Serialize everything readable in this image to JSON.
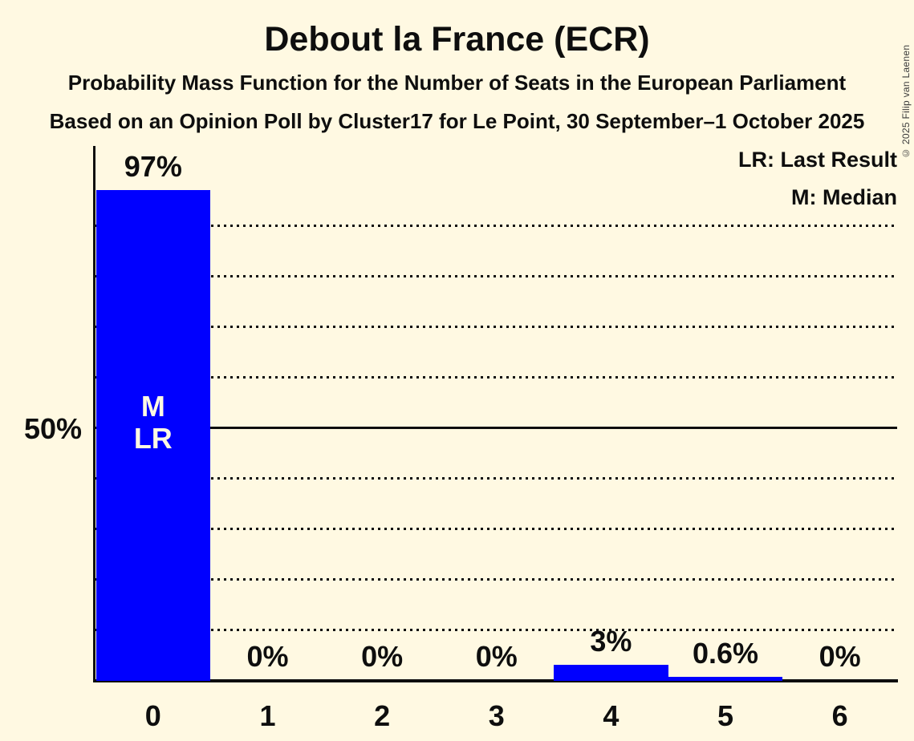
{
  "header": {
    "title": "Debout la France (ECR)",
    "subtitle1": "Probability Mass Function for the Number of Seats in the European Parliament",
    "subtitle2": "Based on an Opinion Poll by Cluster17 for Le Point, 30 September–1 October 2025",
    "copyright": "© 2025 Filip van Laenen"
  },
  "legend": {
    "lr": "LR: Last Result",
    "m": "M: Median"
  },
  "y_axis": {
    "label_50": "50%"
  },
  "colors": {
    "background": "#FFF9E2",
    "bar": "#0000FF",
    "text": "#0E0E0E",
    "bar_marker_text": "#FFF9E2",
    "copyright_text": "#3A3A3A"
  },
  "chart_data": {
    "type": "bar",
    "title": "Debout la France (ECR)",
    "xlabel": "Number of Seats",
    "ylabel": "Probability",
    "categories": [
      "0",
      "1",
      "2",
      "3",
      "4",
      "5",
      "6"
    ],
    "values": [
      97,
      0,
      0,
      0,
      3,
      0.6,
      0
    ],
    "bar_labels": [
      "97%",
      "0%",
      "0%",
      "0%",
      "3%",
      "0.6%",
      "0%"
    ],
    "annotations": [
      {
        "category": "0",
        "lines": [
          "M",
          "LR"
        ],
        "meaning": "Median and Last Result at 0 seats"
      }
    ],
    "ylim": [
      0,
      106
    ],
    "y_solid_line_pct": 50,
    "y_dotted_gridlines_pct": [
      10,
      20,
      30,
      40,
      60,
      70,
      80,
      90
    ],
    "grid": "dotted-horizontal",
    "legend_position": "top-right"
  }
}
